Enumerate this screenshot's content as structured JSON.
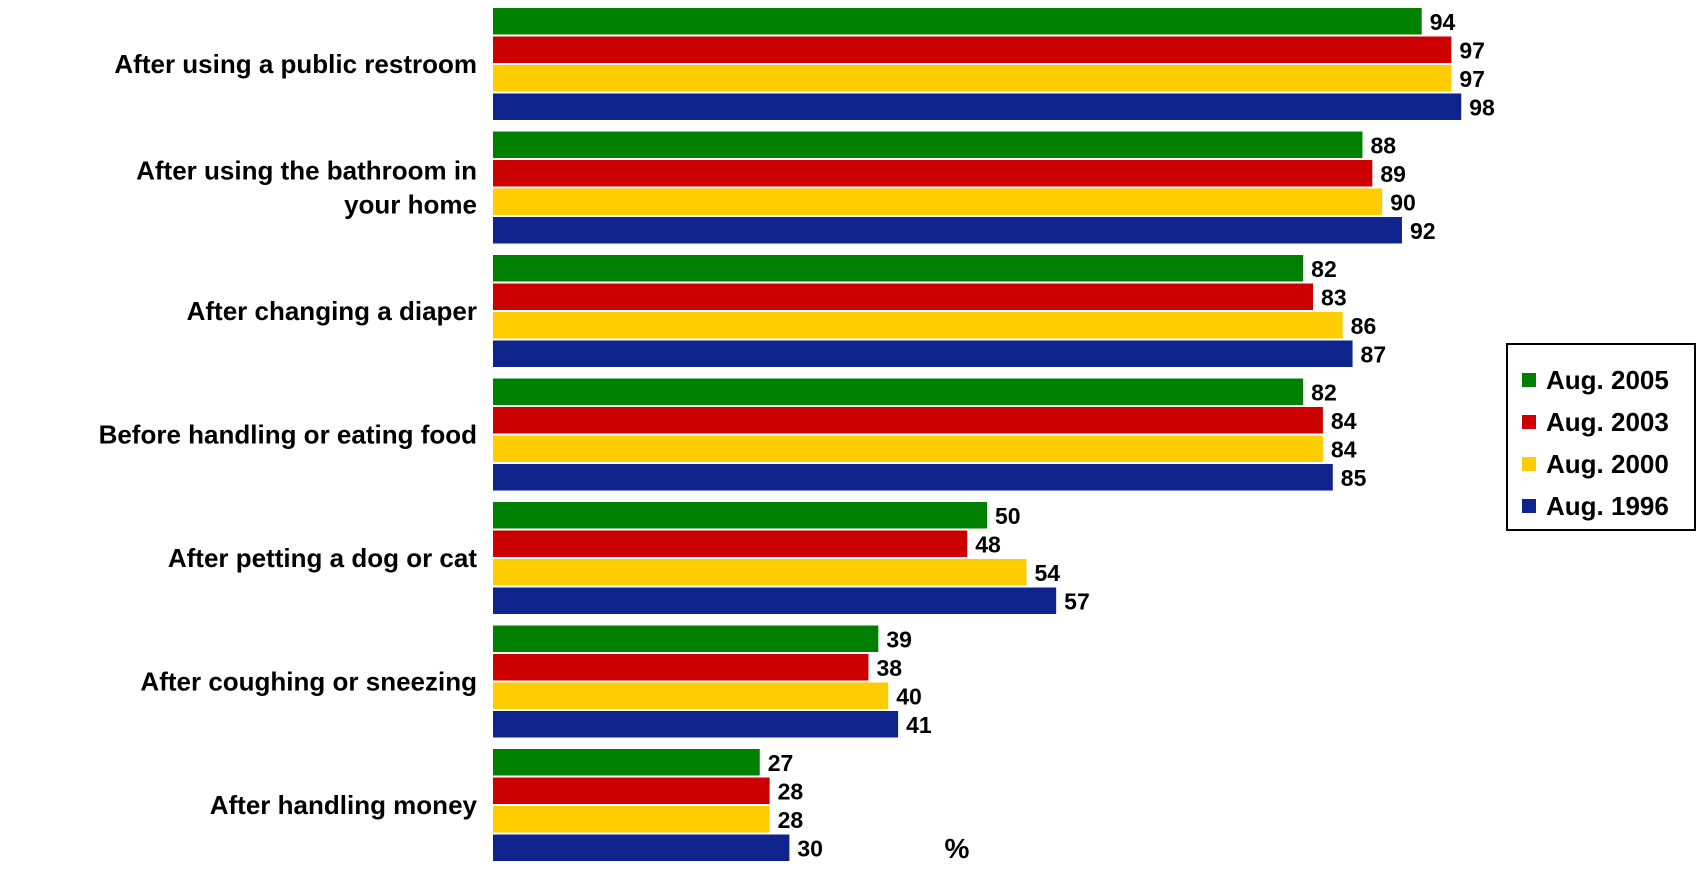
{
  "chart_data": {
    "type": "bar",
    "orientation": "horizontal",
    "categories": [
      [
        "After using a public restroom"
      ],
      [
        "After using the bathroom in",
        "your home"
      ],
      [
        "After changing a diaper"
      ],
      [
        "Before handling or eating food"
      ],
      [
        "After petting a dog or cat"
      ],
      [
        "After coughing or sneezing"
      ],
      [
        "After handling money"
      ]
    ],
    "series": [
      {
        "name": "Aug. 2005",
        "color": "#008000",
        "values": [
          94,
          88,
          82,
          82,
          50,
          39,
          27
        ]
      },
      {
        "name": "Aug. 2003",
        "color": "#CC0000",
        "values": [
          97,
          89,
          83,
          84,
          48,
          38,
          28
        ]
      },
      {
        "name": "Aug. 2000",
        "color": "#FFCC00",
        "values": [
          97,
          90,
          86,
          84,
          54,
          40,
          28
        ]
      },
      {
        "name": "Aug. 1996",
        "color": "#0F238C",
        "values": [
          98,
          92,
          87,
          85,
          57,
          41,
          30
        ]
      }
    ],
    "xlabel": "%",
    "xlim": [
      0,
      100
    ],
    "grid": false,
    "legend_position": "right"
  }
}
